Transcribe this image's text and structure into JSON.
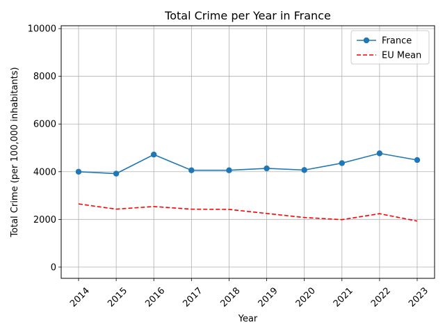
{
  "chart_data": {
    "type": "line",
    "title": "Total Crime per Year in France",
    "xlabel": "Year",
    "ylabel": "Total Crime (per 100,000 inhabitants)",
    "categories": [
      "2014",
      "2015",
      "2016",
      "2017",
      "2018",
      "2019",
      "2020",
      "2021",
      "2022",
      "2023"
    ],
    "ylim": [
      -470,
      10120
    ],
    "yticks": [
      0,
      2000,
      4000,
      6000,
      8000,
      10000
    ],
    "grid": true,
    "legend_position": "top-right",
    "series": [
      {
        "name": "France",
        "values": [
          4000,
          3920,
          4720,
          4060,
          4060,
          4140,
          4070,
          4360,
          4770,
          4490
        ],
        "color": "#1f77b4",
        "style": "solid",
        "marker": "circle"
      },
      {
        "name": "EU Mean",
        "values": [
          2650,
          2430,
          2540,
          2430,
          2420,
          2250,
          2080,
          1990,
          2240,
          1930
        ],
        "color": "#ff0000",
        "style": "dashed",
        "marker": "none"
      }
    ]
  }
}
